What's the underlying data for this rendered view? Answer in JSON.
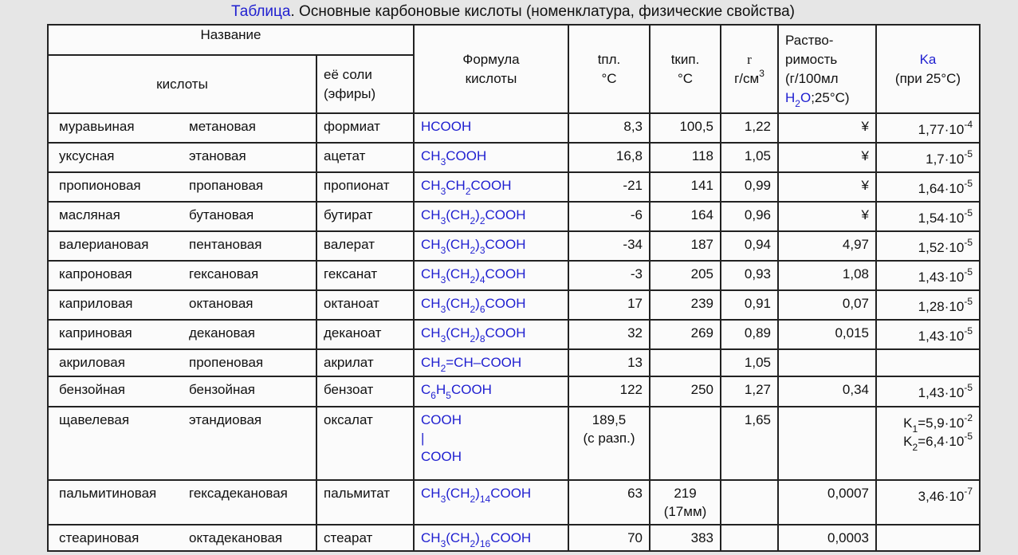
{
  "title": {
    "label": "Таблица",
    "text": ". Основные карбоновые кислоты (номенклатура, физические свойства)"
  },
  "header": {
    "name": "Название",
    "acid": "кислоты",
    "salt": "её соли\n(эфиры)",
    "formula": "Формула\nкислоты",
    "t_melt": "tпл.\n°С",
    "t_boil": "tкип.\n°С",
    "density": [
      {
        "text": "r",
        "font": "serif"
      },
      "\nг/см",
      {
        "sup": "3"
      }
    ],
    "solubility": [
      "Раство-\nримость\n(г/100мл\n",
      {
        "text": "H",
        "color": "#1f1fd0"
      },
      {
        "sub": "2",
        "color": "#1f1fd0"
      },
      {
        "text": "O",
        "color": "#1f1fd0"
      },
      ";25°С)"
    ],
    "ka": [
      {
        "text": "Ka",
        "color": "#1f1fd0"
      },
      "\n(при 25°С)"
    ]
  },
  "rows": [
    [
      "муравьиная",
      "метановая",
      "формиат",
      "HCOOH",
      "8,3",
      "100,5",
      "1,22",
      "¥",
      [
        "1,77·10",
        {
          "sup": "-4"
        }
      ]
    ],
    [
      "уксусная",
      "этановая",
      "ацетат",
      [
        "CH",
        {
          "sub": "3"
        },
        "COOH"
      ],
      "16,8",
      "118",
      "1,05",
      "¥",
      [
        "1,7·10",
        {
          "sup": "-5"
        }
      ]
    ],
    [
      "пропионовая",
      "пропановая",
      "пропионат",
      [
        "CH",
        {
          "sub": "3"
        },
        "CH",
        {
          "sub": "2"
        },
        "COOH"
      ],
      "-21",
      "141",
      "0,99",
      "¥",
      [
        "1,64·10",
        {
          "sup": "-5"
        }
      ]
    ],
    [
      "масляная",
      "бутановая",
      "бутират",
      [
        "CH",
        {
          "sub": "3"
        },
        "(CH",
        {
          "sub": "2"
        },
        ")",
        {
          "sub": "2"
        },
        "COOH"
      ],
      "-6",
      "164",
      "0,96",
      "¥",
      [
        "1,54·10",
        {
          "sup": "-5"
        }
      ]
    ],
    [
      "валериановая",
      "пентановая",
      "валерат",
      [
        "CH",
        {
          "sub": "3"
        },
        "(CH",
        {
          "sub": "2"
        },
        ")",
        {
          "sub": "3"
        },
        "COOH"
      ],
      "-34",
      "187",
      "0,94",
      "4,97",
      [
        "1,52·10",
        {
          "sup": "-5"
        }
      ]
    ],
    [
      "капроновая",
      "гексановая",
      "гексанат",
      [
        "CH",
        {
          "sub": "3"
        },
        "(CH",
        {
          "sub": "2"
        },
        ")",
        {
          "sub": "4"
        },
        "COOH"
      ],
      "-3",
      "205",
      "0,93",
      "1,08",
      [
        "1,43·10",
        {
          "sup": "-5"
        }
      ]
    ],
    [
      "каприловая",
      "октановая",
      "октаноат",
      [
        "CH",
        {
          "sub": "3"
        },
        "(CH",
        {
          "sub": "2"
        },
        ")",
        {
          "sub": "6"
        },
        "COOH"
      ],
      "17",
      "239",
      "0,91",
      "0,07",
      [
        "1,28·10",
        {
          "sup": "-5"
        }
      ]
    ],
    [
      "каприновая",
      "декановая",
      "деканоат",
      [
        "CH",
        {
          "sub": "3"
        },
        "(CH",
        {
          "sub": "2"
        },
        ")",
        {
          "sub": "8"
        },
        "COOH"
      ],
      "32",
      "269",
      "0,89",
      "0,015",
      [
        "1,43·10",
        {
          "sup": "-5"
        }
      ]
    ],
    [
      "акриловая",
      "пропеновая",
      "акрилат",
      [
        "CH",
        {
          "sub": "2"
        },
        "=CH–COOH"
      ],
      "13",
      null,
      "1,05",
      null,
      null
    ],
    [
      "бензойная",
      "бензойная",
      "бензоат",
      [
        "C",
        {
          "sub": "6"
        },
        "H",
        {
          "sub": "5"
        },
        "COOH"
      ],
      "122",
      "250",
      "1,27",
      "0,34",
      [
        "1,43·10",
        {
          "sup": "-5"
        }
      ]
    ],
    [
      "щавелевая",
      "этандиовая",
      "оксалат",
      "COOH\n  |\nCOOH",
      "189,5\n(с разп.)",
      null,
      "1,65",
      null,
      [
        "K",
        {
          "sub": "1"
        },
        "=5,9·10",
        {
          "sup": "-2"
        },
        "\n",
        "K",
        {
          "sub": "2"
        },
        "=6,4·10",
        {
          "sup": "-5"
        }
      ]
    ],
    [
      "пальмитиновая",
      "гексадекановая",
      "пальмитат",
      [
        "CH",
        {
          "sub": "3"
        },
        "(CH",
        {
          "sub": "2"
        },
        ")",
        {
          "sub": "14"
        },
        "COOH"
      ],
      "63",
      "219\n(17мм)",
      null,
      "0,0007",
      [
        "3,46·10",
        {
          "sup": "-7"
        }
      ]
    ],
    [
      "стеариновая",
      "октадекановая",
      "стеарат",
      [
        "CH",
        {
          "sub": "3"
        },
        "(CH",
        {
          "sub": "2"
        },
        ")",
        {
          "sub": "16"
        },
        "COOH"
      ],
      "70",
      "383",
      null,
      "0,0003",
      null
    ]
  ]
}
